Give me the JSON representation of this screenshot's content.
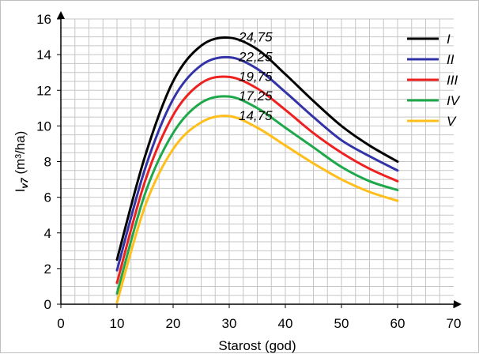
{
  "chart_data": {
    "type": "line",
    "title": "",
    "xlabel": "Starost (god)",
    "ylabel_main": "I",
    "ylabel_sub": "v7",
    "ylabel_unit": " (m³/ha)",
    "xlim": [
      0,
      70
    ],
    "ylim": [
      0,
      16
    ],
    "x_ticks": [
      0,
      10,
      20,
      30,
      40,
      50,
      60,
      70
    ],
    "y_ticks": [
      0,
      2,
      4,
      6,
      8,
      10,
      12,
      14,
      16
    ],
    "x_minor_step": 2.5,
    "y_minor_step": 0.5,
    "grid": true,
    "legend_position": "top-right",
    "x": [
      10,
      15,
      20,
      25,
      30,
      35,
      40,
      45,
      50,
      55,
      60
    ],
    "series": [
      {
        "name": "I",
        "color": "#000000",
        "annotation": "24,75",
        "values": [
          2.5,
          8.3,
          12.5,
          14.5,
          14.95,
          14.3,
          12.9,
          11.4,
          10.0,
          8.9,
          8.0
        ]
      },
      {
        "name": "II",
        "color": "#3333a8",
        "annotation": "22,25",
        "values": [
          1.9,
          7.6,
          11.5,
          13.4,
          13.85,
          13.2,
          11.9,
          10.5,
          9.2,
          8.3,
          7.5
        ]
      },
      {
        "name": "III",
        "color": "#ee2020",
        "annotation": "19,75",
        "values": [
          1.2,
          6.9,
          10.6,
          12.4,
          12.75,
          12.1,
          10.9,
          9.6,
          8.5,
          7.6,
          6.9
        ]
      },
      {
        "name": "IV",
        "color": "#1fa84a",
        "annotation": "17,25",
        "values": [
          0.6,
          6.2,
          9.6,
          11.3,
          11.65,
          11.0,
          9.9,
          8.8,
          7.7,
          6.9,
          6.4
        ]
      },
      {
        "name": "V",
        "color": "#ffbe1a",
        "annotation": "14,75",
        "values": [
          0.1,
          5.5,
          8.7,
          10.2,
          10.55,
          9.9,
          8.9,
          7.9,
          7.0,
          6.3,
          5.8
        ]
      }
    ]
  }
}
